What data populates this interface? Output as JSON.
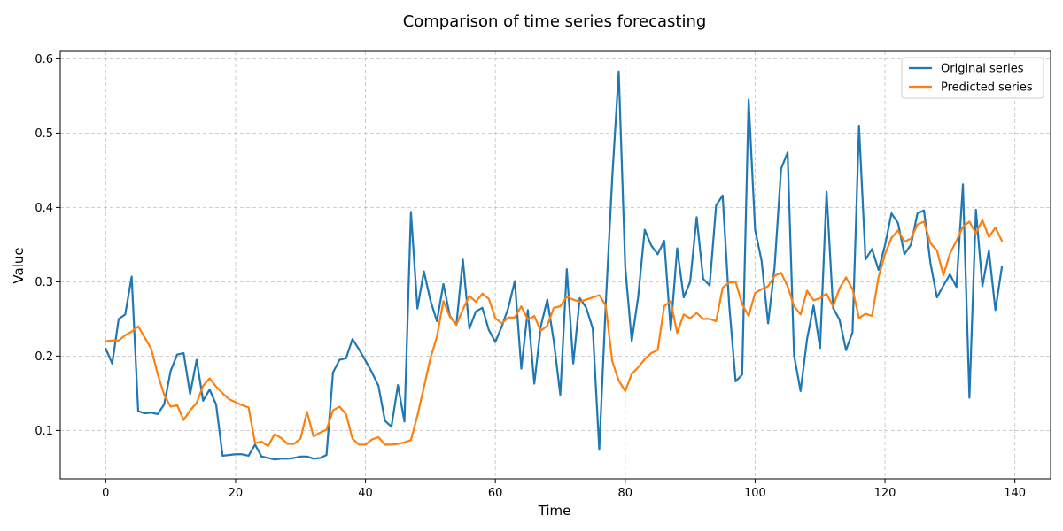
{
  "chart_data": {
    "type": "line",
    "title": "Comparison of time series forecasting",
    "xlabel": "Time",
    "ylabel": "Value",
    "xlim": [
      -7,
      145.5
    ],
    "ylim": [
      0.035,
      0.61
    ],
    "xticks": [
      0,
      20,
      40,
      60,
      80,
      100,
      120,
      140
    ],
    "yticks": [
      0.1,
      0.2,
      0.3,
      0.4,
      0.5,
      0.6
    ],
    "grid": true,
    "legend_position": "top-right",
    "series": [
      {
        "name": "Original series",
        "color": "#1f77b4",
        "values": [
          0.21,
          0.19,
          0.25,
          0.256,
          0.307,
          0.126,
          0.123,
          0.124,
          0.122,
          0.135,
          0.18,
          0.202,
          0.204,
          0.149,
          0.195,
          0.14,
          0.155,
          0.135,
          0.066,
          0.067,
          0.068,
          0.068,
          0.066,
          0.081,
          0.065,
          0.063,
          0.061,
          0.062,
          0.062,
          0.063,
          0.065,
          0.065,
          0.062,
          0.063,
          0.067,
          0.178,
          0.195,
          0.197,
          0.223,
          0.209,
          0.194,
          0.178,
          0.16,
          0.113,
          0.105,
          0.161,
          0.112,
          0.394,
          0.264,
          0.314,
          0.275,
          0.247,
          0.297,
          0.254,
          0.242,
          0.33,
          0.237,
          0.26,
          0.265,
          0.235,
          0.219,
          0.24,
          0.265,
          0.301,
          0.183,
          0.262,
          0.163,
          0.24,
          0.276,
          0.22,
          0.148,
          0.317,
          0.19,
          0.278,
          0.265,
          0.237,
          0.074,
          0.27,
          0.44,
          0.583,
          0.32,
          0.22,
          0.28,
          0.37,
          0.349,
          0.337,
          0.355,
          0.235,
          0.345,
          0.279,
          0.3,
          0.387,
          0.304,
          0.295,
          0.403,
          0.416,
          0.27,
          0.166,
          0.175,
          0.545,
          0.37,
          0.328,
          0.244,
          0.32,
          0.452,
          0.474,
          0.201,
          0.153,
          0.223,
          0.268,
          0.211,
          0.421,
          0.265,
          0.249,
          0.208,
          0.232,
          0.51,
          0.33,
          0.344,
          0.316,
          0.349,
          0.392,
          0.379,
          0.337,
          0.35,
          0.392,
          0.396,
          0.325,
          0.279,
          0.295,
          0.31,
          0.293,
          0.431,
          0.144,
          0.397,
          0.294,
          0.342,
          0.262,
          0.32
        ]
      },
      {
        "name": "Predicted series",
        "color": "#ff7f0e",
        "values": [
          0.22,
          0.221,
          0.221,
          0.228,
          0.233,
          0.24,
          0.225,
          0.21,
          0.176,
          0.148,
          0.132,
          0.134,
          0.114,
          0.127,
          0.137,
          0.16,
          0.17,
          0.159,
          0.15,
          0.142,
          0.138,
          0.134,
          0.131,
          0.083,
          0.085,
          0.079,
          0.095,
          0.09,
          0.082,
          0.082,
          0.089,
          0.125,
          0.092,
          0.097,
          0.101,
          0.127,
          0.132,
          0.122,
          0.089,
          0.081,
          0.081,
          0.088,
          0.091,
          0.081,
          0.081,
          0.082,
          0.084,
          0.087,
          0.12,
          0.158,
          0.197,
          0.226,
          0.274,
          0.253,
          0.242,
          0.263,
          0.281,
          0.273,
          0.284,
          0.277,
          0.251,
          0.244,
          0.252,
          0.252,
          0.267,
          0.249,
          0.254,
          0.234,
          0.241,
          0.265,
          0.267,
          0.28,
          0.276,
          0.273,
          0.276,
          0.279,
          0.282,
          0.268,
          0.193,
          0.167,
          0.153,
          0.176,
          0.185,
          0.196,
          0.204,
          0.208,
          0.267,
          0.274,
          0.231,
          0.256,
          0.251,
          0.258,
          0.25,
          0.25,
          0.247,
          0.292,
          0.299,
          0.3,
          0.27,
          0.254,
          0.285,
          0.29,
          0.294,
          0.308,
          0.312,
          0.294,
          0.267,
          0.256,
          0.288,
          0.275,
          0.278,
          0.284,
          0.267,
          0.291,
          0.306,
          0.29,
          0.251,
          0.257,
          0.254,
          0.306,
          0.337,
          0.359,
          0.369,
          0.354,
          0.358,
          0.377,
          0.381,
          0.352,
          0.342,
          0.309,
          0.338,
          0.355,
          0.374,
          0.381,
          0.365,
          0.383,
          0.36,
          0.373,
          0.355
        ]
      }
    ]
  }
}
